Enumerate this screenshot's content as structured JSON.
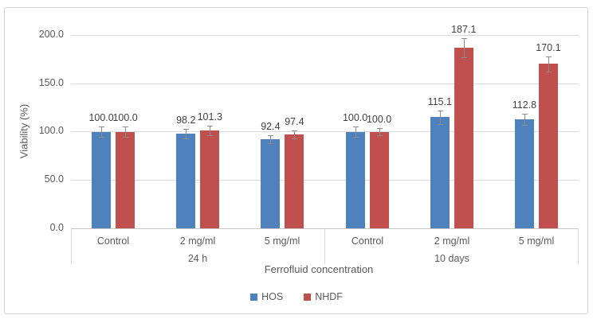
{
  "chart_data": {
    "type": "bar",
    "title": "",
    "xlabel": "Ferrofluid concentration",
    "ylabel": "Viability (%)",
    "ylim": [
      0,
      200
    ],
    "yticks": [
      0,
      50,
      100,
      150,
      200
    ],
    "ytick_labels": [
      "0.0",
      "50.0",
      "100.0",
      "150.0",
      "200.0"
    ],
    "grid": true,
    "legend_position": "bottom",
    "categories": [
      "Control",
      "2 mg/ml",
      "5 mg/ml",
      "Control",
      "2 mg/ml",
      "5 mg/ml"
    ],
    "group_labels": [
      "24 h",
      "10 days"
    ],
    "series": [
      {
        "name": "HOS",
        "color": "#4F81BD",
        "values": [
          100.0,
          98.2,
          92.4,
          100.0,
          115.1,
          112.8
        ],
        "errors": [
          5,
          5,
          4,
          5,
          7,
          6
        ],
        "labels": [
          "100.0",
          "98.2",
          "92.4",
          "100.0",
          "115.1",
          "112.8"
        ]
      },
      {
        "name": "NHDF",
        "color": "#C0504D",
        "values": [
          100.0,
          101.3,
          97.4,
          100.0,
          187.1,
          170.1
        ],
        "errors": [
          5,
          5,
          4,
          4,
          10,
          8
        ],
        "labels": [
          "100.0",
          "101.3",
          "97.4",
          "100.0",
          "187.1",
          "170.1"
        ]
      }
    ]
  },
  "colors": {
    "hos_bar": "#4F81BD",
    "nhdf_bar": "#C0504D",
    "gridline": "#D9D9D9",
    "axis_text": "#595959",
    "error_bar": "#8C8C8C"
  }
}
